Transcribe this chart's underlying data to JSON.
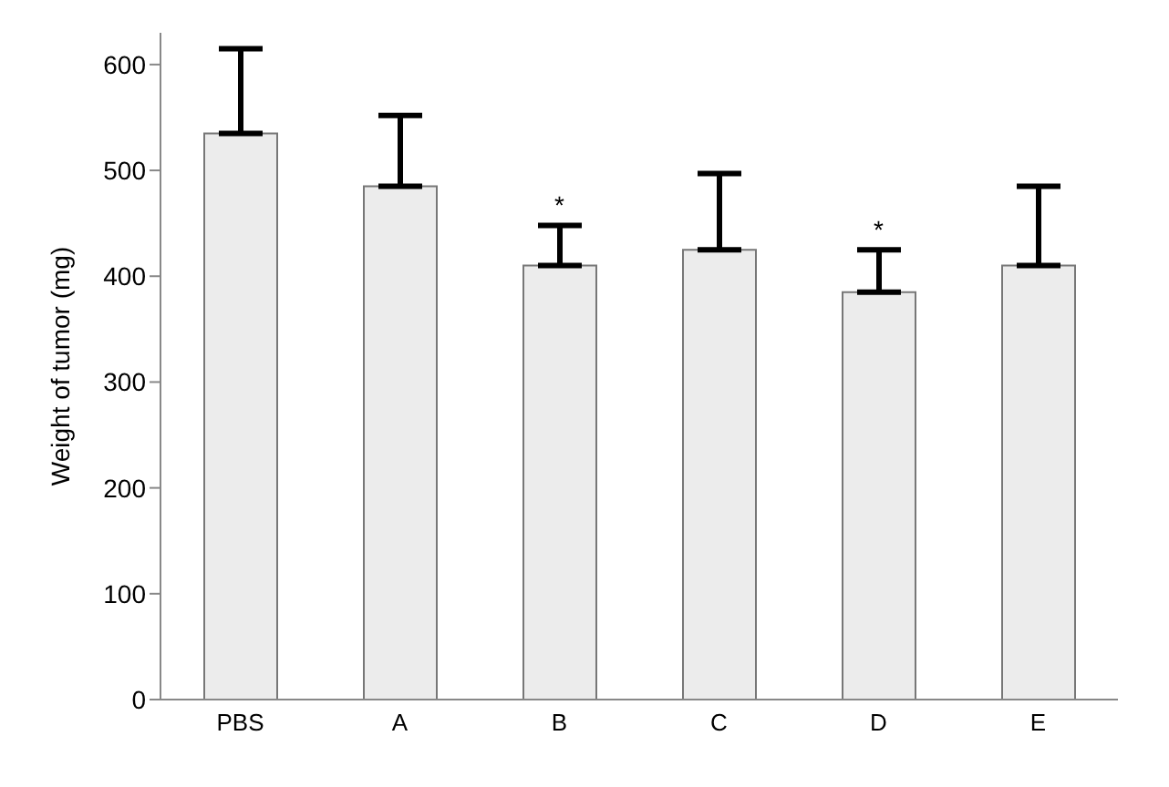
{
  "chart_data": {
    "type": "bar",
    "ylabel": "Weight of tumor (mg)",
    "categories": [
      "PBS",
      "A",
      "B",
      "C",
      "D",
      "E"
    ],
    "values": [
      535,
      485,
      410,
      425,
      385,
      410
    ],
    "errors": [
      [
        535,
        615
      ],
      [
        485,
        552
      ],
      [
        410,
        448
      ],
      [
        425,
        497
      ],
      [
        385,
        425
      ],
      [
        410,
        485
      ]
    ],
    "color": "#ececec",
    "ylim": [
      0,
      630
    ],
    "yticks": [
      0,
      100,
      200,
      300,
      400,
      500,
      600
    ],
    "annotations": [
      {
        "text": "*",
        "x": "B",
        "y": 448
      },
      {
        "text": "*",
        "x": "D",
        "y": 425
      }
    ],
    "grid": false,
    "legend": false
  }
}
